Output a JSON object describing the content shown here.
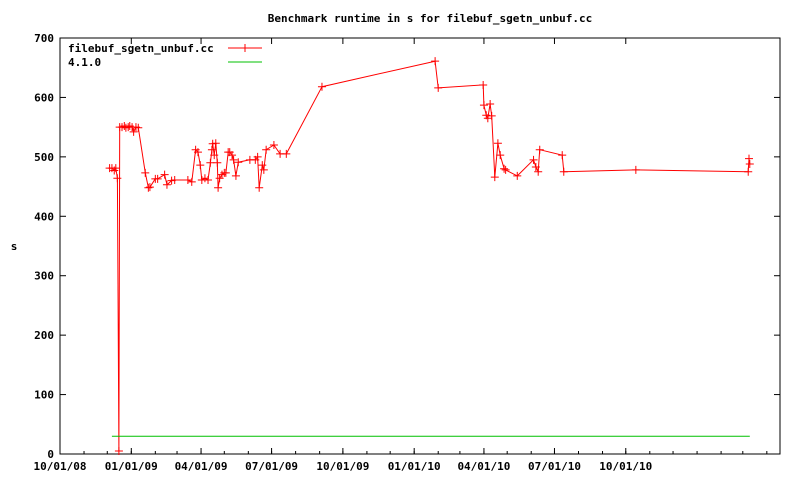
{
  "chart_data": {
    "type": "line",
    "title": "Benchmark runtime in s for filebuf_sgetn_unbuf.cc",
    "xlabel": "",
    "ylabel": "s",
    "xlim": [
      "2008-10-01",
      "2011-04-18"
    ],
    "ylim": [
      0,
      700
    ],
    "yticks": [
      0,
      100,
      200,
      300,
      400,
      500,
      600,
      700
    ],
    "xticks": [
      {
        "date": "2008-10-01",
        "label": "10/01/08"
      },
      {
        "date": "2009-01-01",
        "label": "01/01/09"
      },
      {
        "date": "2009-04-01",
        "label": "04/01/09"
      },
      {
        "date": "2009-07-01",
        "label": "07/01/09"
      },
      {
        "date": "2009-10-01",
        "label": "10/01/09"
      },
      {
        "date": "2010-01-01",
        "label": "01/01/10"
      },
      {
        "date": "2010-04-01",
        "label": "04/01/10"
      },
      {
        "date": "2010-07-01",
        "label": "07/01/10"
      },
      {
        "date": "2010-10-01",
        "label": "10/01/10"
      }
    ],
    "grid": false,
    "legend_position": "top-left",
    "series": [
      {
        "name": "filebuf_sgetn_unbuf.cc",
        "color": "#ff0000",
        "marker": "plus",
        "points": [
          [
            "2008-12-04",
            481
          ],
          [
            "2008-12-07",
            481
          ],
          [
            "2008-12-10",
            477
          ],
          [
            "2008-12-12",
            481
          ],
          [
            "2008-12-14",
            464
          ],
          [
            "2008-12-16",
            5
          ],
          [
            "2008-12-17",
            550
          ],
          [
            "2008-12-20",
            550
          ],
          [
            "2008-12-23",
            552
          ],
          [
            "2008-12-25",
            549
          ],
          [
            "2008-12-28",
            550
          ],
          [
            "2008-12-30",
            552
          ],
          [
            "2009-01-02",
            550
          ],
          [
            "2009-01-04",
            542
          ],
          [
            "2009-01-07",
            550
          ],
          [
            "2009-01-10",
            549
          ],
          [
            "2009-01-19",
            473
          ],
          [
            "2009-01-23",
            448
          ],
          [
            "2009-01-25",
            449
          ],
          [
            "2009-02-01",
            463
          ],
          [
            "2009-02-04",
            463
          ],
          [
            "2009-02-13",
            470
          ],
          [
            "2009-02-16",
            453
          ],
          [
            "2009-02-22",
            460
          ],
          [
            "2009-02-26",
            461
          ],
          [
            "2009-03-15",
            461
          ],
          [
            "2009-03-20",
            458
          ],
          [
            "2009-03-25",
            512
          ],
          [
            "2009-03-28",
            508
          ],
          [
            "2009-03-31",
            486
          ],
          [
            "2009-04-02",
            461
          ],
          [
            "2009-04-06",
            464
          ],
          [
            "2009-04-10",
            461
          ],
          [
            "2009-04-13",
            490
          ],
          [
            "2009-04-15",
            512
          ],
          [
            "2009-04-16",
            522
          ],
          [
            "2009-04-18",
            503
          ],
          [
            "2009-04-20",
            523
          ],
          [
            "2009-04-22",
            490
          ],
          [
            "2009-04-23",
            448
          ],
          [
            "2009-04-25",
            464
          ],
          [
            "2009-04-28",
            470
          ],
          [
            "2009-05-01",
            473
          ],
          [
            "2009-05-03",
            473
          ],
          [
            "2009-05-06",
            508
          ],
          [
            "2009-05-08",
            508
          ],
          [
            "2009-05-11",
            503
          ],
          [
            "2009-05-13",
            495
          ],
          [
            "2009-05-16",
            468
          ],
          [
            "2009-05-19",
            491
          ],
          [
            "2009-06-03",
            495
          ],
          [
            "2009-06-10",
            495
          ],
          [
            "2009-06-13",
            500
          ],
          [
            "2009-06-15",
            448
          ],
          [
            "2009-06-19",
            486
          ],
          [
            "2009-06-21",
            478
          ],
          [
            "2009-06-24",
            512
          ],
          [
            "2009-07-04",
            520
          ],
          [
            "2009-07-12",
            505
          ],
          [
            "2009-07-20",
            505
          ],
          [
            "2009-09-04",
            618
          ],
          [
            "2010-01-28",
            661
          ],
          [
            "2010-02-01",
            616
          ],
          [
            "2010-03-31",
            621
          ],
          [
            "2010-04-01",
            587
          ],
          [
            "2010-04-04",
            570
          ],
          [
            "2010-04-06",
            565
          ],
          [
            "2010-04-09",
            589
          ],
          [
            "2010-04-11",
            569
          ],
          [
            "2010-04-15",
            466
          ],
          [
            "2010-04-19",
            523
          ],
          [
            "2010-04-22",
            503
          ],
          [
            "2010-04-27",
            480
          ],
          [
            "2010-04-29",
            478
          ],
          [
            "2010-05-14",
            468
          ],
          [
            "2010-06-04",
            495
          ],
          [
            "2010-06-07",
            483
          ],
          [
            "2010-06-10",
            475
          ],
          [
            "2010-06-12",
            512
          ],
          [
            "2010-07-11",
            503
          ],
          [
            "2010-07-13",
            475
          ],
          [
            "2010-10-14",
            478
          ],
          [
            "2011-03-08",
            475
          ],
          [
            "2011-03-09",
            497
          ],
          [
            "2011-03-10",
            488
          ]
        ]
      },
      {
        "name": "4.1.0",
        "color": "#00c000",
        "marker": "none",
        "points": [
          [
            "2008-12-07",
            30
          ],
          [
            "2011-03-10",
            30
          ]
        ]
      }
    ]
  }
}
